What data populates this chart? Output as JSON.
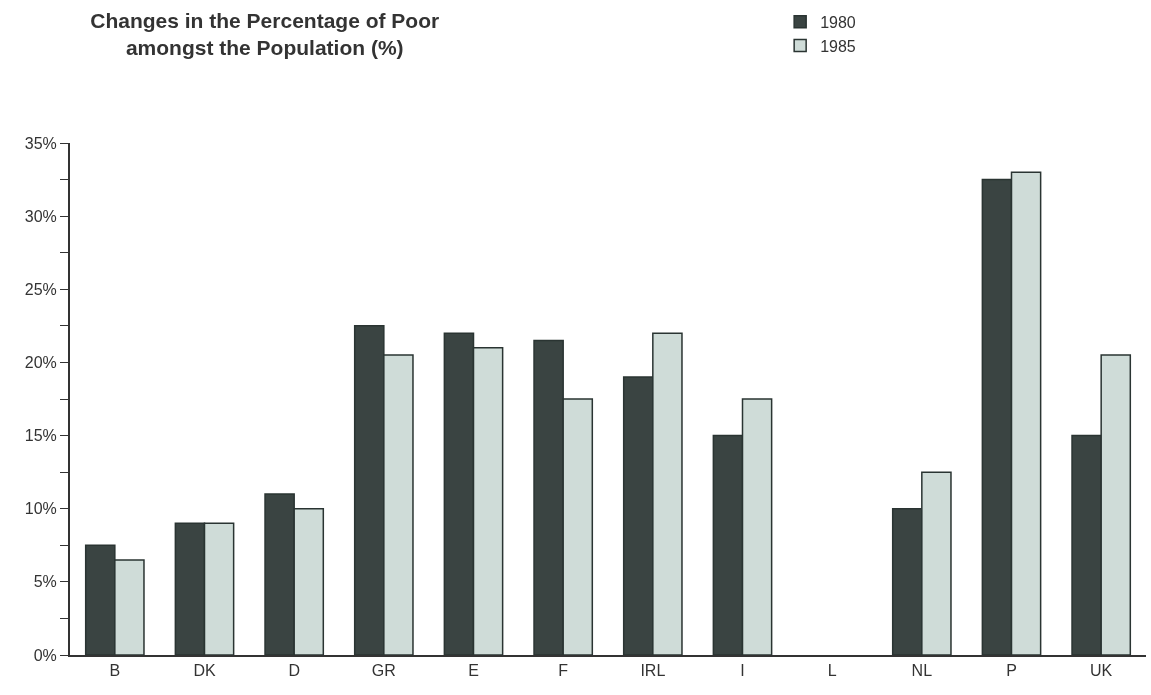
{
  "chart_data": {
    "type": "bar",
    "title": "Changes in the Percentage of Poor\namongst the Population (%)",
    "categories": [
      "B",
      "DK",
      "D",
      "GR",
      "E",
      "F",
      "IRL",
      "I",
      "L",
      "NL",
      "P",
      "UK"
    ],
    "series": [
      {
        "name": "1980",
        "color": "#3a4442",
        "values": [
          7.5,
          9,
          11,
          22.5,
          22,
          21.5,
          19,
          15,
          null,
          10,
          32.5,
          15
        ]
      },
      {
        "name": "1985",
        "color": "#cfdcd8",
        "values": [
          6.5,
          9,
          10,
          20.5,
          21,
          17.5,
          22,
          17.5,
          null,
          12.5,
          33,
          20.5
        ]
      }
    ],
    "ylim": [
      0,
      35
    ],
    "yticks": [
      {
        "value": 0,
        "label": "0%"
      },
      {
        "value": 2.5,
        "label": null
      },
      {
        "value": 5,
        "label": "5%"
      },
      {
        "value": 7.5,
        "label": null
      },
      {
        "value": 10,
        "label": "10%"
      },
      {
        "value": 12.5,
        "label": null
      },
      {
        "value": 15,
        "label": "15%"
      },
      {
        "value": 17.5,
        "label": null
      },
      {
        "value": 20,
        "label": "20%"
      },
      {
        "value": 22.5,
        "label": null
      },
      {
        "value": 25,
        "label": "25%"
      },
      {
        "value": 27.5,
        "label": null
      },
      {
        "value": 30,
        "label": "30%"
      },
      {
        "value": 32.5,
        "label": null
      },
      {
        "value": 35,
        "label": "35%"
      }
    ],
    "legend": "top right"
  }
}
